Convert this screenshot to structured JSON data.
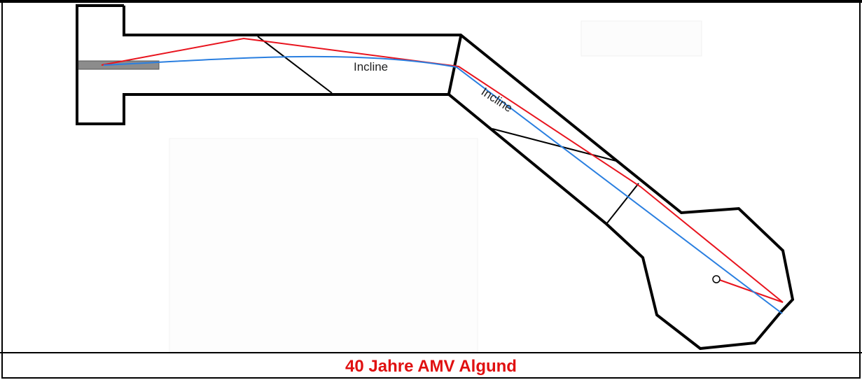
{
  "diagram": {
    "label_incline_1": "Incline",
    "label_incline_2": "Incline"
  },
  "caption": {
    "text": "40 Jahre AMV Algund",
    "color": "#e01010"
  },
  "colors": {
    "track_outline": "#000000",
    "red_path": "#e8141e",
    "blue_path": "#2a7fe0",
    "start_gate": "#8c8c8c"
  }
}
